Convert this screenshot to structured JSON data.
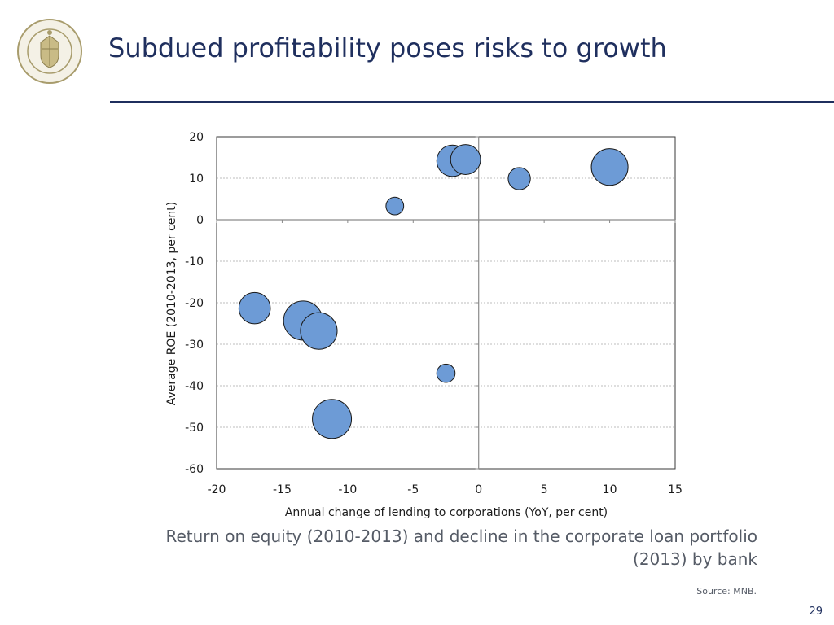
{
  "slide": {
    "title": "Subdued profitability poses risks to growth",
    "caption_line1": "Return on equity (2010-2013) and decline in the corporate loan portfolio",
    "caption_line2": "(2013) by bank",
    "source": "Source: MNB.",
    "page_number": "29",
    "logo_text": "MAGYAR NEMZETI BANK",
    "colors": {
      "title": "#1f2f5e",
      "bubble_fill": "#6d9bd6",
      "bubble_stroke": "#1a1a1a"
    }
  },
  "chart_data": {
    "type": "scatter",
    "title": "",
    "xlabel": "Annual change of lending to corporations (YoY, per cent)",
    "ylabel": "Average ROE (2010-2013, per cent)",
    "xlim": [
      -20,
      15
    ],
    "ylim": [
      -60,
      20
    ],
    "xticks": [
      -20,
      -15,
      -10,
      -5,
      0,
      5,
      10,
      15
    ],
    "yticks": [
      20,
      10,
      0,
      -10,
      -20,
      -30,
      -40,
      -50,
      -60
    ],
    "points": [
      {
        "x": -17.1,
        "y": -21.3,
        "size": 2.2
      },
      {
        "x": -13.4,
        "y": -24.3,
        "size": 3.4
      },
      {
        "x": -12.2,
        "y": -26.8,
        "size": 3.0
      },
      {
        "x": -11.2,
        "y": -48.0,
        "size": 3.4
      },
      {
        "x": -6.4,
        "y": 3.3,
        "size": 0.7
      },
      {
        "x": -2.5,
        "y": -37.0,
        "size": 0.75
      },
      {
        "x": -2.0,
        "y": 14.2,
        "size": 2.2
      },
      {
        "x": -1.0,
        "y": 14.5,
        "size": 2.0
      },
      {
        "x": 3.1,
        "y": 9.9,
        "size": 1.1
      },
      {
        "x": 10.0,
        "y": 12.7,
        "size": 3.0
      }
    ]
  }
}
